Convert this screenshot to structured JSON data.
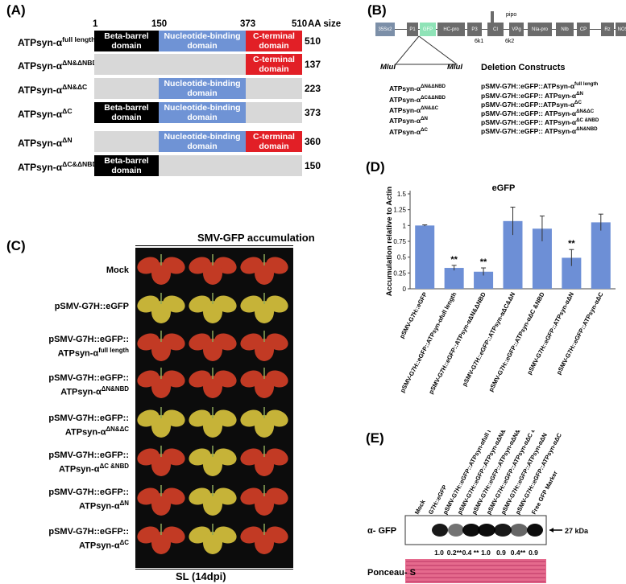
{
  "panelA": {
    "label": "(A)",
    "positions": [
      "1",
      "150",
      "373",
      "510"
    ],
    "aa_size_header": "AA size",
    "domains": {
      "beta": "Beta-barrel domain",
      "nbd": "Nucleotide-binding domain",
      "cterm": "C-terminal domain"
    },
    "rows": [
      {
        "name": "ATPsyn-α",
        "sup": "full length",
        "aa": "510",
        "segments": [
          "beta",
          "nbd",
          "cterm"
        ]
      },
      {
        "name": "ATPsyn-α",
        "sup": "ΔN&ΔNBD",
        "aa": "137",
        "segments": [
          "gray",
          "gray",
          "cterm"
        ]
      },
      {
        "name": "ATPsyn-α",
        "sup": "ΔN&ΔC",
        "aa": "223",
        "segments": [
          "gray",
          "nbd",
          "gray"
        ]
      },
      {
        "name": "ATPsyn-α",
        "sup": "ΔC",
        "aa": "373",
        "segments": [
          "beta",
          "nbd",
          "gray"
        ]
      },
      {
        "name": "ATPsyn-α",
        "sup": "ΔN",
        "aa": "360",
        "segments": [
          "gray",
          "nbd",
          "cterm"
        ]
      },
      {
        "name": "ATPsyn-α",
        "sup": "ΔC&ΔNBD",
        "aa": "150",
        "segments": [
          "beta",
          "gray",
          "gray"
        ]
      }
    ]
  },
  "panelB": {
    "label": "(B)",
    "genome": [
      "35Sx2",
      "P1",
      "GFP",
      "HC-pro",
      "P3",
      "CI",
      "VPg",
      "NIa-pro",
      "NIb",
      "CP",
      "Rz",
      "NOSt"
    ],
    "pipo": "pipo",
    "k1": "6k1",
    "k2": "6k2",
    "mlu_left": "MluI",
    "mlu_right": "MluI",
    "deletion_title": "Deletion Constructs",
    "left_list": [
      {
        "name": "ATPsyn-α",
        "sup": "ΔN&ΔNBD"
      },
      {
        "name": "ATPsyn-α",
        "sup": "ΔC&ΔNBD"
      },
      {
        "name": "ATPsyn-α",
        "sup": "ΔN&ΔC"
      },
      {
        "name": "ATPsyn-α",
        "sup": "ΔN"
      },
      {
        "name": "ATPsyn-α",
        "sup": "ΔC"
      }
    ],
    "right_list": [
      {
        "name": "pSMV-G7H::eGFP::ATPsyn-α",
        "sup": "full length"
      },
      {
        "name": "pSMV-G7H::eGFP:: ATPsyn-α",
        "sup": "ΔN"
      },
      {
        "name": "pSMV-G7H::eGFP::ATPsyn-α",
        "sup": "ΔC"
      },
      {
        "name": "pSMV-G7H::eGFP:: ATPsyn-α",
        "sup": "ΔN&ΔC"
      },
      {
        "name": "pSMV-G7H::eGFP:: ATPsyn-α",
        "sup": "ΔC &NBD"
      },
      {
        "name": "pSMV-G7H::eGFP:: ATPsyn-α",
        "sup": "ΔN&NBD"
      }
    ]
  },
  "panelC": {
    "label": "(C)",
    "title": "SMV-GFP accumulation",
    "footer": "SL (14dpi)",
    "rows": [
      {
        "l1": "Mock",
        "l2": "",
        "sup": ""
      },
      {
        "l1": "pSMV-G7H::eGFP",
        "l2": "",
        "sup": ""
      },
      {
        "l1": "pSMV-G7H::eGFP::",
        "l2": "ATPsyn-α",
        "sup": "full length"
      },
      {
        "l1": "pSMV-G7H::eGFP::",
        "l2": "ATPsyn-α",
        "sup": "ΔN&NBD"
      },
      {
        "l1": "pSMV-G7H::eGFP::",
        "l2": "ATPsyn-α",
        "sup": "ΔN&ΔC"
      },
      {
        "l1": "pSMV-G7H::eGFP::",
        "l2": "ATPsyn-α",
        "sup": "ΔC &NBD"
      },
      {
        "l1": "pSMV-G7H::eGFP::",
        "l2": "ATPsyn-α",
        "sup": "ΔN"
      },
      {
        "l1": "pSMV-G7H::eGFP::",
        "l2": "ATPsyn-α",
        "sup": "ΔC"
      }
    ],
    "colors": {
      "red_leaf": "#c23a24",
      "yellow_leaf": "#c6b338",
      "bg": "#0c0c0c"
    }
  },
  "chart_data": {
    "type": "bar",
    "label": "(D)",
    "title": "eGFP",
    "ylabel": "Accumulation relative to Actin",
    "ylim": [
      0,
      1.5
    ],
    "yticks": [
      "0",
      "0.25",
      "0.5",
      "0.75",
      "1",
      "1.25",
      "1.5"
    ],
    "categories": [
      "pSMV-G7H::eGFP",
      "pSMV-G7H::eGFP::ATPsyn-αfull length",
      "pSMV-G7H::eGFP::ATPsyn-αΔN&ΔNBD",
      "pSMV-G7H::eGFP::ATPsyn-αΔC&ΔN",
      "pSMV-G7H::eGFP::ATPsyn-αΔC &NBD",
      "pSMV-G7H::eGFP::ATPsyn-αΔN",
      "pSMV-G7H::eGFP::ATPsyn-αΔC"
    ],
    "values": [
      1.0,
      0.33,
      0.27,
      1.07,
      0.95,
      0.49,
      1.05
    ],
    "errors": [
      0.01,
      0.04,
      0.06,
      0.22,
      0.2,
      0.13,
      0.13
    ],
    "significance": [
      "",
      "**",
      "**",
      "",
      "",
      "**",
      ""
    ],
    "bar_color": "#6d8fd6"
  },
  "panelE": {
    "label": "(E)",
    "lanes": [
      "Mock",
      "G7H::eGFP",
      "pSMV-G7H::eGFP::ATPsyn-αfull length",
      "pSMV-G7H::eGFP::ATPsyn-αΔN&ΔNBD",
      "pSMV-G7H::eGFP::ATPsyn-αΔN&ΔC",
      "pSMV-G7H::eGFP::ATPsyn-αΔC &NBD",
      "pSMV-G7H::eGFP::ATPsyn-αΔN",
      "pSMV-G7H::eGFP::ATPsyn-αΔC",
      "Free GFP Marker"
    ],
    "blot_label": "α- GFP",
    "kda": "27 kDa",
    "quant": [
      "1.0",
      "0.2**",
      "0.4 **",
      "1.0",
      "0.9",
      "0.4**",
      "0.9"
    ],
    "ponceau_label": "Ponceau- S"
  }
}
